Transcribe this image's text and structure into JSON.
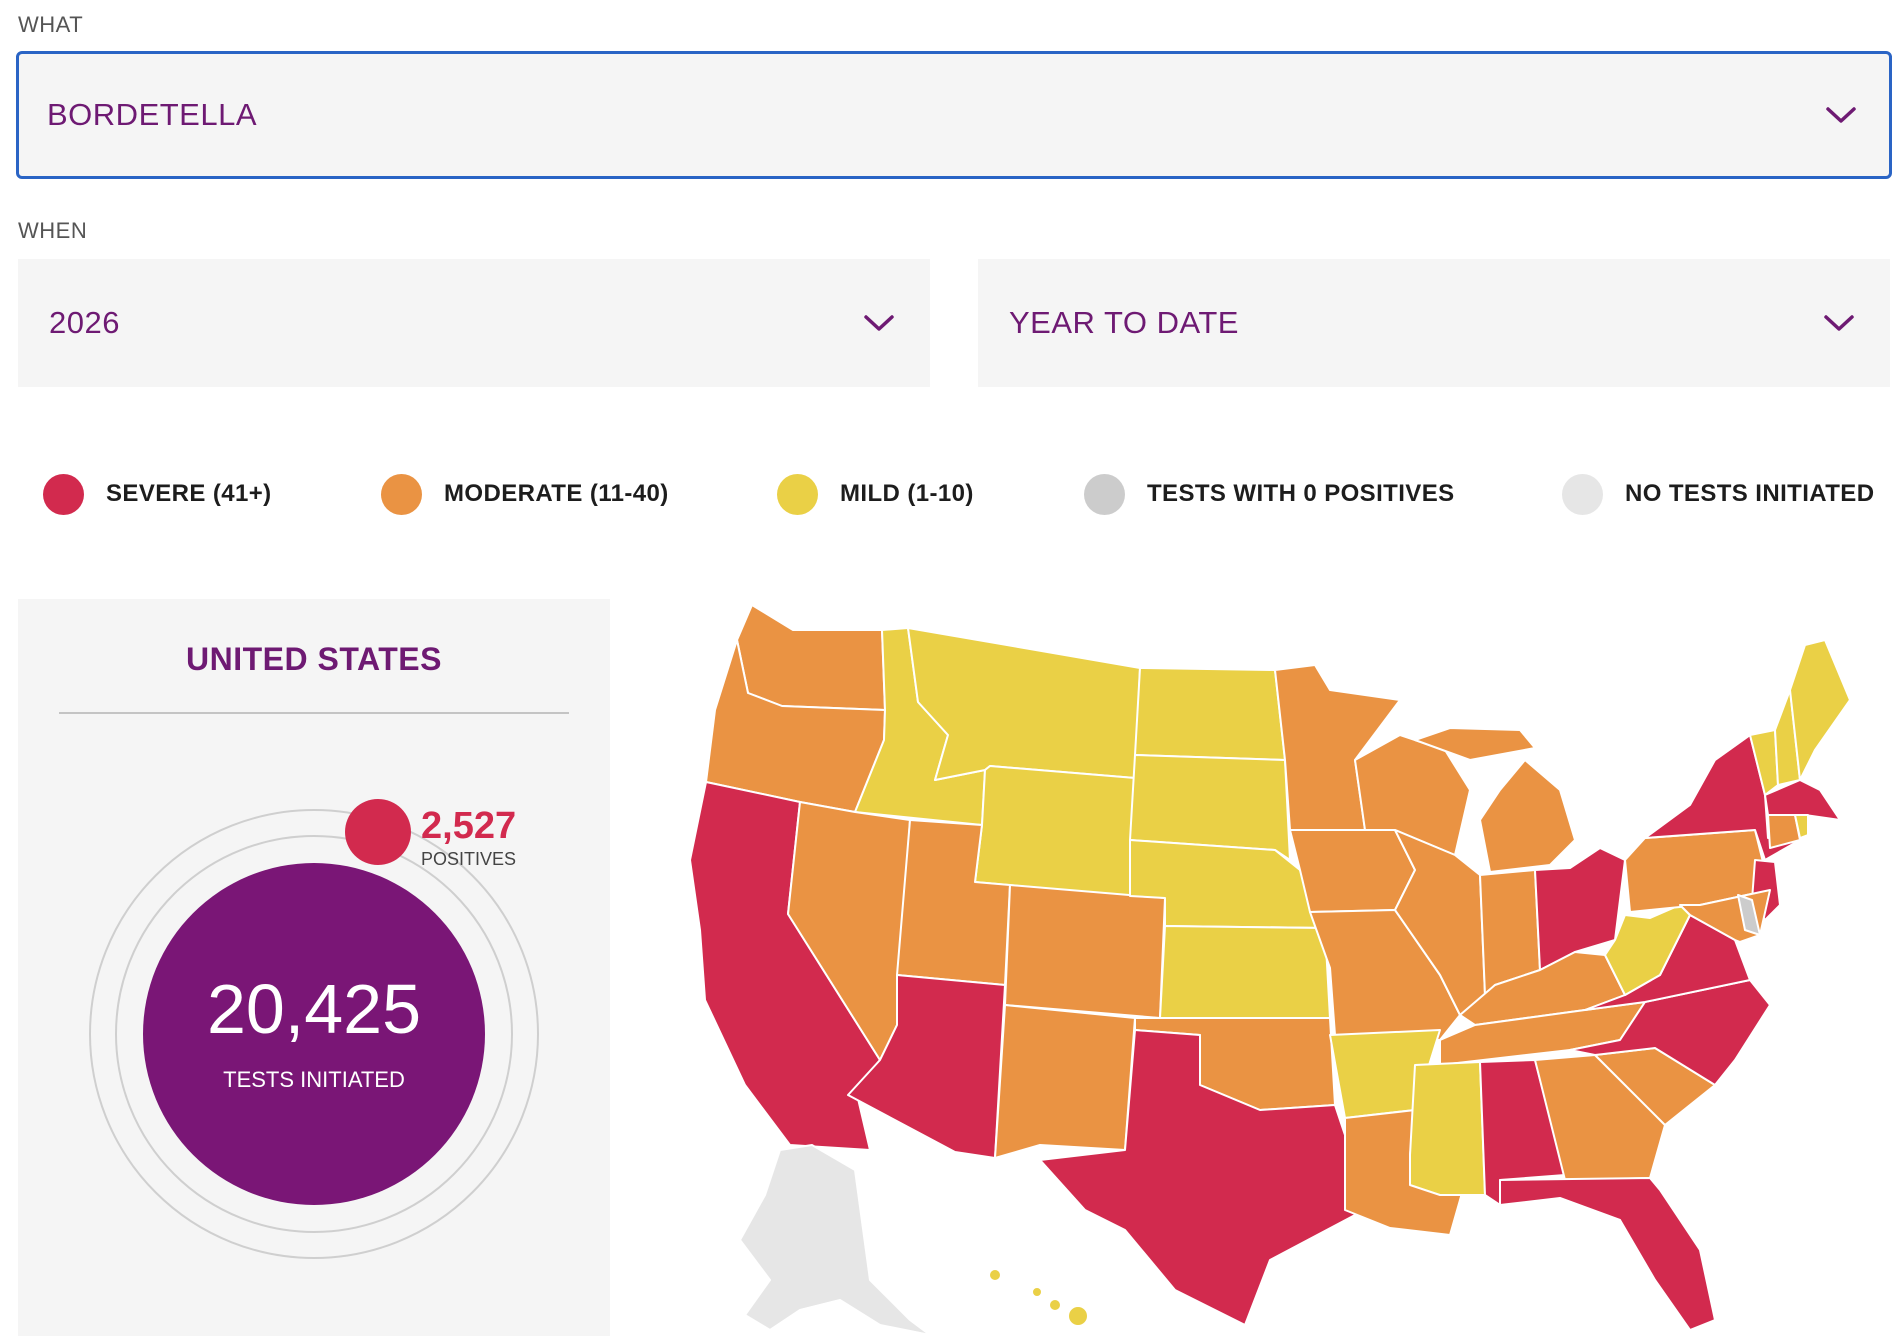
{
  "what": {
    "label": "WHAT",
    "selected": "BORDETELLA"
  },
  "when": {
    "label": "WHEN",
    "year": "2026",
    "period": "YEAR TO DATE"
  },
  "colors": {
    "severe": "#d22a4e",
    "moderate": "#ea9343",
    "mild": "#ead046",
    "zero_positives": "#cccccc",
    "no_tests": "#e6e6e6",
    "accent_purple": "#7a1676",
    "focus_border": "#2a64c5"
  },
  "legend": [
    {
      "key": "severe",
      "label": "SEVERE (41+)",
      "color": "#d22a4e"
    },
    {
      "key": "moderate",
      "label": "MODERATE (11-40)",
      "color": "#ea9343"
    },
    {
      "key": "mild",
      "label": "MILD (1-10)",
      "color": "#ead046"
    },
    {
      "key": "zero",
      "label": "TESTS WITH 0 POSITIVES",
      "color": "#cccccc"
    },
    {
      "key": "none",
      "label": "NO TESTS INITIATED",
      "color": "#e6e6e6"
    }
  ],
  "summary": {
    "title": "UNITED STATES",
    "positives_value": "2,527",
    "positives_label": "POSITIVES",
    "tests_value": "20,425",
    "tests_label": "TESTS INITIATED"
  },
  "icons": {
    "dropdown": "chevron-down-icon"
  }
}
